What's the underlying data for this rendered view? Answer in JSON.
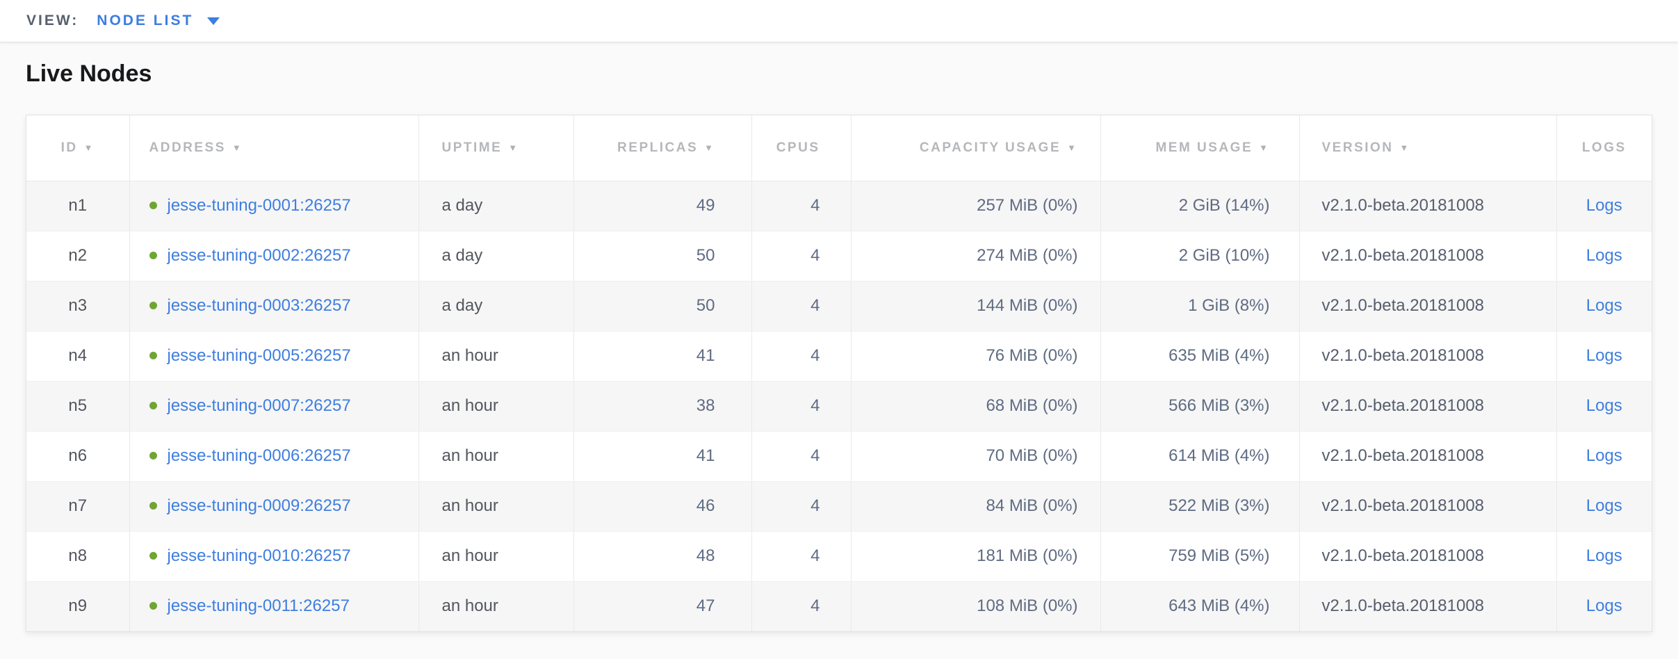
{
  "view_bar": {
    "label": "VIEW:",
    "selected": "NODE LIST"
  },
  "page": {
    "title": "Live Nodes"
  },
  "colors": {
    "accent_blue": "#3d7de0",
    "link_blue": "#3e7ee0",
    "live_dot_green": "#70a533"
  },
  "table": {
    "columns": [
      {
        "key": "id",
        "label": "ID",
        "sortable": true
      },
      {
        "key": "address",
        "label": "ADDRESS",
        "sortable": true
      },
      {
        "key": "uptime",
        "label": "UPTIME",
        "sortable": true
      },
      {
        "key": "replicas",
        "label": "REPLICAS",
        "sortable": true
      },
      {
        "key": "cpus",
        "label": "CPUS",
        "sortable": false
      },
      {
        "key": "capacity",
        "label": "CAPACITY USAGE",
        "sortable": true
      },
      {
        "key": "mem",
        "label": "MEM USAGE",
        "sortable": true
      },
      {
        "key": "version",
        "label": "VERSION",
        "sortable": true
      },
      {
        "key": "logs",
        "label": "LOGS",
        "sortable": false
      }
    ],
    "rows": [
      {
        "id": "n1",
        "status": "live",
        "address": "jesse-tuning-0001:26257",
        "uptime": "a day",
        "replicas": "49",
        "cpus": "4",
        "capacity": "257 MiB (0%)",
        "mem": "2 GiB (14%)",
        "version": "v2.1.0-beta.20181008",
        "logs": "Logs"
      },
      {
        "id": "n2",
        "status": "live",
        "address": "jesse-tuning-0002:26257",
        "uptime": "a day",
        "replicas": "50",
        "cpus": "4",
        "capacity": "274 MiB (0%)",
        "mem": "2 GiB (10%)",
        "version": "v2.1.0-beta.20181008",
        "logs": "Logs"
      },
      {
        "id": "n3",
        "status": "live",
        "address": "jesse-tuning-0003:26257",
        "uptime": "a day",
        "replicas": "50",
        "cpus": "4",
        "capacity": "144 MiB (0%)",
        "mem": "1 GiB (8%)",
        "version": "v2.1.0-beta.20181008",
        "logs": "Logs"
      },
      {
        "id": "n4",
        "status": "live",
        "address": "jesse-tuning-0005:26257",
        "uptime": "an hour",
        "replicas": "41",
        "cpus": "4",
        "capacity": "76 MiB (0%)",
        "mem": "635 MiB (4%)",
        "version": "v2.1.0-beta.20181008",
        "logs": "Logs"
      },
      {
        "id": "n5",
        "status": "live",
        "address": "jesse-tuning-0007:26257",
        "uptime": "an hour",
        "replicas": "38",
        "cpus": "4",
        "capacity": "68 MiB (0%)",
        "mem": "566 MiB (3%)",
        "version": "v2.1.0-beta.20181008",
        "logs": "Logs"
      },
      {
        "id": "n6",
        "status": "live",
        "address": "jesse-tuning-0006:26257",
        "uptime": "an hour",
        "replicas": "41",
        "cpus": "4",
        "capacity": "70 MiB (0%)",
        "mem": "614 MiB (4%)",
        "version": "v2.1.0-beta.20181008",
        "logs": "Logs"
      },
      {
        "id": "n7",
        "status": "live",
        "address": "jesse-tuning-0009:26257",
        "uptime": "an hour",
        "replicas": "46",
        "cpus": "4",
        "capacity": "84 MiB (0%)",
        "mem": "522 MiB (3%)",
        "version": "v2.1.0-beta.20181008",
        "logs": "Logs"
      },
      {
        "id": "n8",
        "status": "live",
        "address": "jesse-tuning-0010:26257",
        "uptime": "an hour",
        "replicas": "48",
        "cpus": "4",
        "capacity": "181 MiB (0%)",
        "mem": "759 MiB (5%)",
        "version": "v2.1.0-beta.20181008",
        "logs": "Logs"
      },
      {
        "id": "n9",
        "status": "live",
        "address": "jesse-tuning-0011:26257",
        "uptime": "an hour",
        "replicas": "47",
        "cpus": "4",
        "capacity": "108 MiB (0%)",
        "mem": "643 MiB (4%)",
        "version": "v2.1.0-beta.20181008",
        "logs": "Logs"
      }
    ]
  }
}
